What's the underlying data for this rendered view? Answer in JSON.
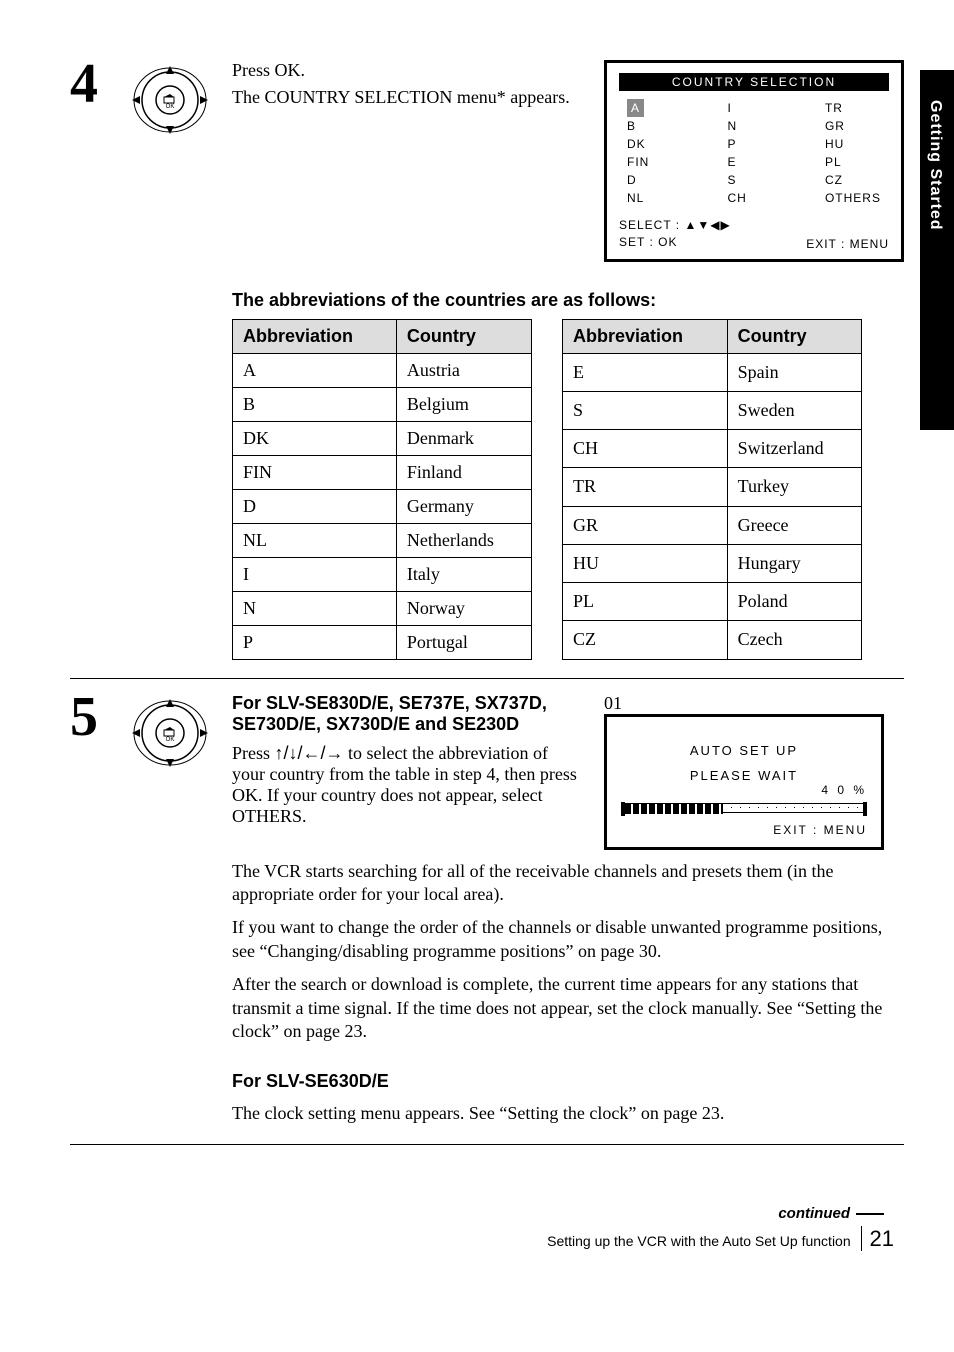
{
  "sideTab": "Getting Started",
  "step4": {
    "num": "4",
    "line1": "Press OK.",
    "line2": "The COUNTRY SELECTION menu* appears.",
    "osd": {
      "title": "COUNTRY SELECTION",
      "col1": [
        "A",
        "B",
        "DK",
        "FIN",
        "D",
        "NL"
      ],
      "col2": [
        "I",
        "N",
        "P",
        "E",
        "S",
        "CH"
      ],
      "col3": [
        "TR",
        "GR",
        "HU",
        "PL",
        "CZ",
        "OTHERS"
      ],
      "footLeftLine1": "SELECT  : ▲▼◀▶",
      "footLeftLine2": "SET        : OK",
      "footRight": "EXIT  : MENU"
    },
    "subhead": "The abbreviations of the countries are as follows:",
    "table1": {
      "headers": [
        "Abbreviation",
        "Country"
      ],
      "rows": [
        [
          "A",
          "Austria"
        ],
        [
          "B",
          "Belgium"
        ],
        [
          "DK",
          "Denmark"
        ],
        [
          "FIN",
          "Finland"
        ],
        [
          "D",
          "Germany"
        ],
        [
          "NL",
          "Netherlands"
        ],
        [
          "I",
          "Italy"
        ],
        [
          "N",
          "Norway"
        ],
        [
          "P",
          "Portugal"
        ]
      ]
    },
    "table2": {
      "headers": [
        "Abbreviation",
        "Country"
      ],
      "rows": [
        [
          "E",
          "Spain"
        ],
        [
          "S",
          "Sweden"
        ],
        [
          "CH",
          "Switzerland"
        ],
        [
          "TR",
          "Turkey"
        ],
        [
          "GR",
          "Greece"
        ],
        [
          "HU",
          "Hungary"
        ],
        [
          "PL",
          "Poland"
        ],
        [
          "CZ",
          "Czech"
        ]
      ]
    }
  },
  "step5": {
    "num": "5",
    "heading": "For SLV-SE830D/E, SE737E, SX737D, SE730D/E, SX730D/E and SE230D",
    "pressPrefix": "Press ",
    "arrows": "↑/↓/←/→",
    "pressSuffix": " to select the abbreviation of your country from the table in step 4, then press OK. If your country does not appear, select OTHERS.",
    "osd": {
      "line1": "AUTO SET UP",
      "line2": "PLEASE WAIT",
      "percent": "4 0 %",
      "fillPercent": 40,
      "exit": "EXIT  : MENU"
    },
    "para2": "The VCR starts searching for all of the receivable channels and presets them (in the appropriate order for your local area).",
    "para3": "If you want to change the order of the channels or disable unwanted programme positions, see “Changing/disabling programme positions” on page 30.",
    "para4": "After the search or download is complete, the current time appears for any stations that transmit a time signal.  If the time does not appear, set the clock manually.  See “Setting the clock” on page 23.",
    "heading2": "For SLV-SE630D/E",
    "para5": "The clock setting menu appears.  See “Setting the clock” on page 23."
  },
  "footer": {
    "continued": "continued",
    "title": "Setting up the VCR with the Auto Set Up function",
    "page": "21"
  }
}
